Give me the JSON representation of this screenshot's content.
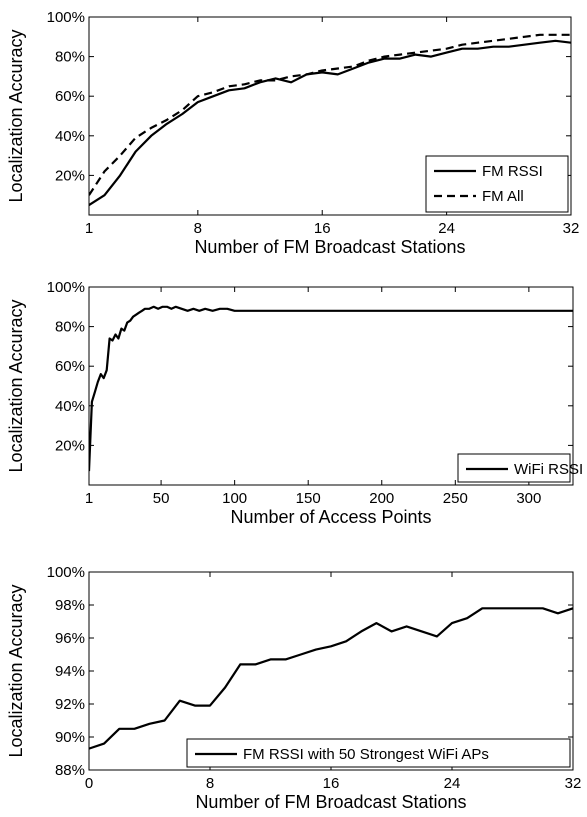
{
  "chart_data": [
    {
      "type": "line",
      "xlabel": "Number of FM Broadcast Stations",
      "ylabel": "Localization Accuracy",
      "xlim": [
        1,
        32
      ],
      "ylim": [
        0,
        100
      ],
      "xticks": [
        1,
        8,
        16,
        24,
        32
      ],
      "xtick_labels": [
        "1",
        "8",
        "16",
        "24",
        "32"
      ],
      "yticks": [
        20,
        40,
        60,
        80,
        100
      ],
      "ytick_labels": [
        "20%",
        "40%",
        "60%",
        "80%",
        "100%"
      ],
      "legend_position": "bottom-right",
      "series": [
        {
          "name": "FM RSSI",
          "style": "solid",
          "color": "#000000",
          "x": [
            1,
            2,
            3,
            4,
            5,
            6,
            7,
            8,
            9,
            10,
            11,
            12,
            13,
            14,
            15,
            16,
            17,
            18,
            19,
            20,
            21,
            22,
            23,
            24,
            25,
            26,
            27,
            28,
            29,
            30,
            31,
            32
          ],
          "y": [
            5,
            10,
            20,
            32,
            40,
            46,
            51,
            57,
            60,
            63,
            64,
            67,
            69,
            67,
            71,
            72,
            71,
            74,
            77,
            79,
            79,
            81,
            80,
            82,
            84,
            84,
            85,
            85,
            86,
            87,
            88,
            87
          ]
        },
        {
          "name": "FM All",
          "style": "dashed",
          "color": "#000000",
          "x": [
            1,
            2,
            3,
            4,
            5,
            6,
            7,
            8,
            9,
            10,
            11,
            12,
            13,
            14,
            15,
            16,
            17,
            18,
            19,
            20,
            21,
            22,
            23,
            24,
            25,
            26,
            27,
            28,
            29,
            30,
            31,
            32
          ],
          "y": [
            10,
            22,
            30,
            39,
            44,
            48,
            53,
            60,
            62,
            65,
            66,
            68,
            68,
            70,
            71,
            73,
            74,
            75,
            78,
            80,
            81,
            82,
            83,
            84,
            86,
            87,
            88,
            89,
            90,
            91,
            91,
            91
          ]
        }
      ]
    },
    {
      "type": "line",
      "xlabel": "Number of Access Points",
      "ylabel": "Localization Accuracy",
      "xlim": [
        1,
        330
      ],
      "ylim": [
        0,
        100
      ],
      "xticks": [
        1,
        50,
        100,
        150,
        200,
        250,
        300
      ],
      "xtick_labels": [
        "1",
        "50",
        "100",
        "150",
        "200",
        "250",
        "300"
      ],
      "yticks": [
        20,
        40,
        60,
        80,
        100
      ],
      "ytick_labels": [
        "20%",
        "40%",
        "60%",
        "80%",
        "100%"
      ],
      "legend_position": "bottom-right",
      "series": [
        {
          "name": "WiFi RSSI",
          "style": "solid",
          "color": "#000000",
          "x": [
            1,
            3,
            5,
            7,
            9,
            11,
            13,
            15,
            17,
            19,
            21,
            23,
            25,
            27,
            29,
            31,
            33,
            35,
            37,
            39,
            42,
            45,
            48,
            51,
            54,
            57,
            60,
            64,
            68,
            72,
            76,
            80,
            85,
            90,
            95,
            100,
            110,
            120,
            150,
            200,
            250,
            300,
            330
          ],
          "y": [
            7,
            42,
            47,
            52,
            56,
            54,
            58,
            74,
            73,
            76,
            74,
            79,
            78,
            82,
            83,
            85,
            86,
            87,
            88,
            89,
            89,
            90,
            89,
            90,
            90,
            89,
            90,
            89,
            88,
            89,
            88,
            89,
            88,
            89,
            89,
            88,
            88,
            88,
            88,
            88,
            88,
            88,
            88
          ]
        }
      ]
    },
    {
      "type": "line",
      "xlabel": "Number of FM Broadcast Stations",
      "ylabel": "Localization Accuracy",
      "xlim": [
        0,
        32
      ],
      "ylim": [
        88,
        100
      ],
      "xticks": [
        0,
        8,
        16,
        24,
        32
      ],
      "xtick_labels": [
        "0",
        "8",
        "16",
        "24",
        "32"
      ],
      "yticks": [
        88,
        90,
        92,
        94,
        96,
        98,
        100
      ],
      "ytick_labels": [
        "88%",
        "90%",
        "92%",
        "94%",
        "96%",
        "98%",
        "100%"
      ],
      "legend_position": "bottom-right",
      "series": [
        {
          "name": "FM RSSI with 50 Strongest WiFi APs",
          "style": "solid",
          "color": "#000000",
          "x": [
            0,
            1,
            2,
            3,
            4,
            5,
            6,
            7,
            8,
            9,
            10,
            11,
            12,
            13,
            14,
            15,
            16,
            17,
            18,
            19,
            20,
            21,
            22,
            23,
            24,
            25,
            26,
            27,
            28,
            29,
            30,
            31,
            32
          ],
          "y": [
            89.3,
            89.6,
            90.5,
            90.5,
            90.8,
            91.0,
            92.2,
            91.9,
            91.9,
            93.0,
            94.4,
            94.4,
            94.7,
            94.7,
            95.0,
            95.3,
            95.5,
            95.8,
            96.4,
            96.9,
            96.4,
            96.7,
            96.4,
            96.1,
            96.9,
            97.2,
            97.8,
            97.8,
            97.8,
            97.8,
            97.8,
            97.5,
            97.8
          ]
        }
      ]
    }
  ]
}
